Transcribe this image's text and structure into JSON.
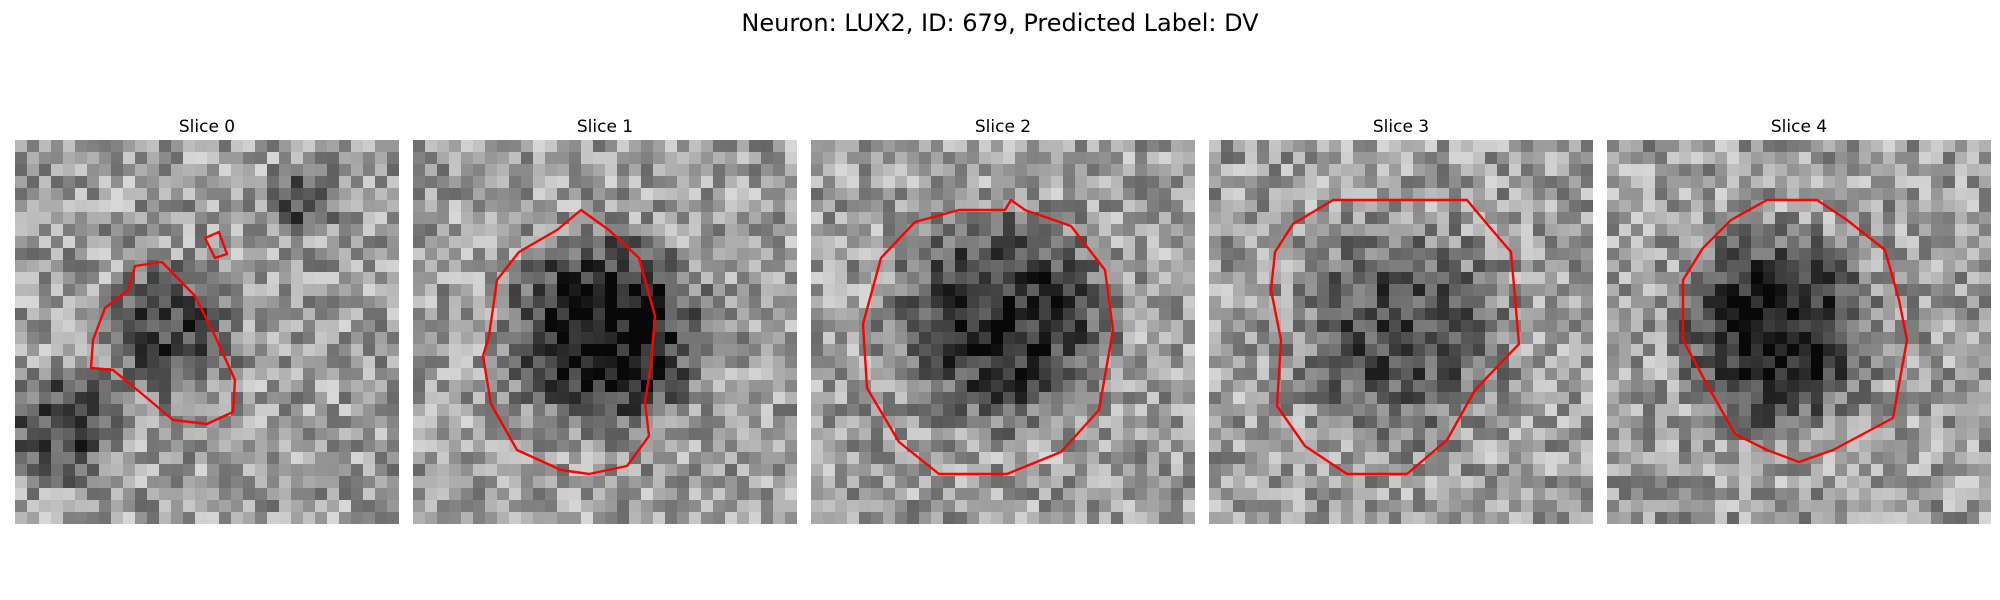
{
  "figure": {
    "suptitle": "Neuron: LUX2, ID: 679, Predicted Label: DV",
    "contour_color": "#ff0000",
    "panels": [
      {
        "title": "Slice 0"
      },
      {
        "title": "Slice 1"
      },
      {
        "title": "Slice 2"
      },
      {
        "title": "Slice 3"
      },
      {
        "title": "Slice 4"
      }
    ]
  }
}
